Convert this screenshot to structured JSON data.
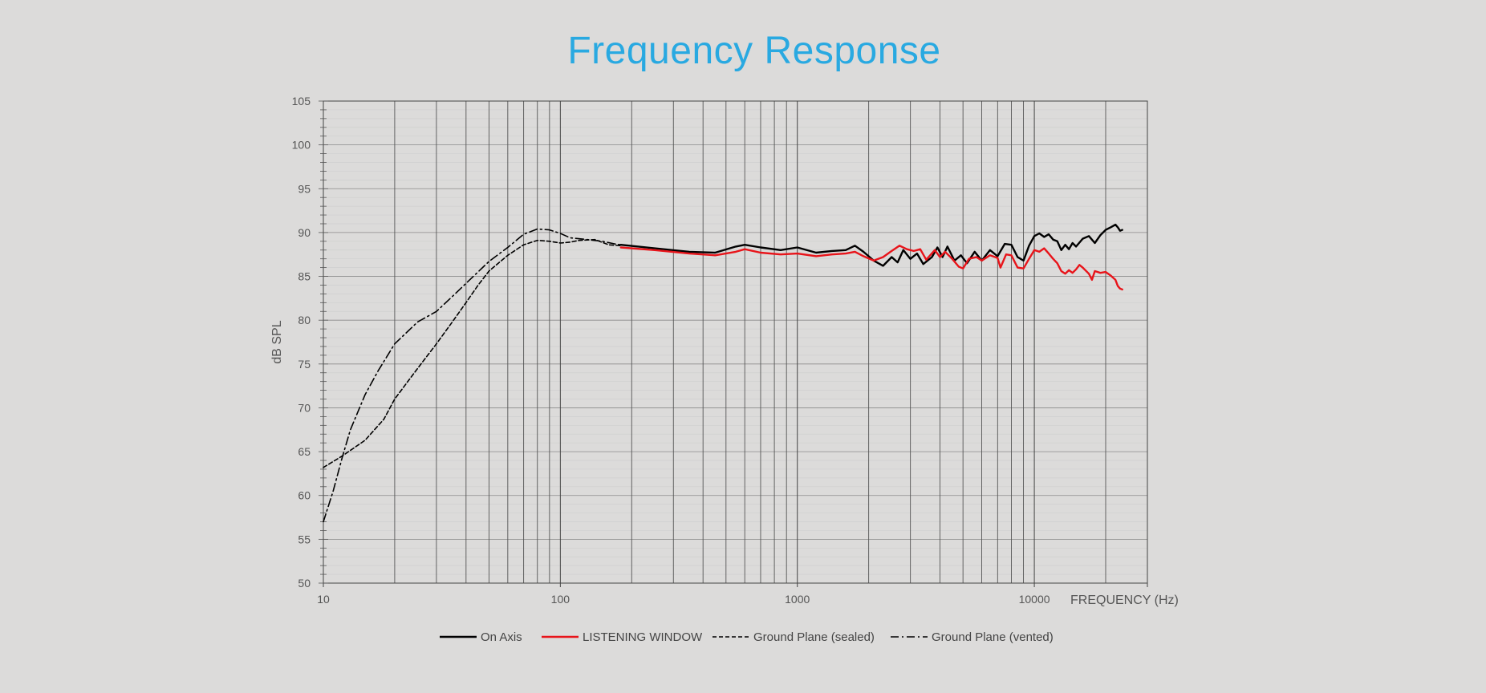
{
  "chart_data": {
    "type": "line",
    "title": "Frequency Response",
    "xlabel": "FREQUENCY (Hz)",
    "ylabel": "dB SPL",
    "x_scale": "log",
    "xlim": [
      10,
      30000
    ],
    "ylim": [
      50,
      105
    ],
    "x_ticks": [
      10,
      100,
      1000,
      10000
    ],
    "x_tick_labels": [
      "10",
      "100",
      "1000",
      "10000"
    ],
    "y_ticks": [
      50,
      55,
      60,
      65,
      70,
      75,
      80,
      85,
      90,
      95,
      100,
      105
    ],
    "y_tick_labels": [
      "50",
      "55",
      "60",
      "65",
      "70",
      "75",
      "80",
      "85",
      "90",
      "95",
      "100",
      "105"
    ],
    "grid": true,
    "legend_position": "bottom",
    "series": [
      {
        "name": "On Axis",
        "color": "#000000",
        "style": "solid",
        "points": [
          [
            180,
            88.6
          ],
          [
            250,
            88.2
          ],
          [
            350,
            87.8
          ],
          [
            450,
            87.7
          ],
          [
            550,
            88.4
          ],
          [
            600,
            88.6
          ],
          [
            700,
            88.3
          ],
          [
            850,
            88.0
          ],
          [
            1000,
            88.3
          ],
          [
            1200,
            87.7
          ],
          [
            1400,
            87.9
          ],
          [
            1600,
            88.0
          ],
          [
            1750,
            88.5
          ],
          [
            1900,
            87.8
          ],
          [
            2100,
            86.8
          ],
          [
            2300,
            86.2
          ],
          [
            2500,
            87.2
          ],
          [
            2650,
            86.6
          ],
          [
            2800,
            88.0
          ],
          [
            3000,
            87.0
          ],
          [
            3200,
            87.6
          ],
          [
            3400,
            86.4
          ],
          [
            3700,
            87.2
          ],
          [
            3900,
            88.3
          ],
          [
            4100,
            87.2
          ],
          [
            4300,
            88.4
          ],
          [
            4600,
            86.8
          ],
          [
            4900,
            87.4
          ],
          [
            5200,
            86.5
          ],
          [
            5600,
            87.8
          ],
          [
            6000,
            86.8
          ],
          [
            6500,
            88.0
          ],
          [
            7000,
            87.3
          ],
          [
            7500,
            88.7
          ],
          [
            8000,
            88.6
          ],
          [
            8500,
            87.2
          ],
          [
            9000,
            86.8
          ],
          [
            9500,
            88.5
          ],
          [
            10000,
            89.6
          ],
          [
            10500,
            89.9
          ],
          [
            11000,
            89.5
          ],
          [
            11500,
            89.8
          ],
          [
            12000,
            89.2
          ],
          [
            12500,
            89.0
          ],
          [
            13000,
            88.0
          ],
          [
            13500,
            88.6
          ],
          [
            14000,
            88.1
          ],
          [
            14500,
            88.8
          ],
          [
            15000,
            88.4
          ],
          [
            16000,
            89.3
          ],
          [
            17000,
            89.6
          ],
          [
            18000,
            88.8
          ],
          [
            19000,
            89.7
          ],
          [
            20000,
            90.3
          ],
          [
            21000,
            90.6
          ],
          [
            22000,
            90.9
          ],
          [
            22500,
            90.6
          ],
          [
            23000,
            90.2
          ],
          [
            23500,
            90.3
          ]
        ]
      },
      {
        "name": "LISTENING WINDOW",
        "color": "#e8141a",
        "style": "solid",
        "points": [
          [
            180,
            88.3
          ],
          [
            250,
            88.0
          ],
          [
            350,
            87.6
          ],
          [
            450,
            87.4
          ],
          [
            550,
            87.8
          ],
          [
            600,
            88.1
          ],
          [
            700,
            87.7
          ],
          [
            850,
            87.5
          ],
          [
            1000,
            87.6
          ],
          [
            1200,
            87.3
          ],
          [
            1400,
            87.5
          ],
          [
            1600,
            87.6
          ],
          [
            1750,
            87.8
          ],
          [
            1900,
            87.3
          ],
          [
            2100,
            86.8
          ],
          [
            2300,
            87.2
          ],
          [
            2500,
            87.9
          ],
          [
            2700,
            88.5
          ],
          [
            2900,
            88.1
          ],
          [
            3100,
            87.9
          ],
          [
            3300,
            88.1
          ],
          [
            3500,
            86.9
          ],
          [
            3800,
            88.0
          ],
          [
            4000,
            87.2
          ],
          [
            4200,
            87.8
          ],
          [
            4500,
            87.0
          ],
          [
            4800,
            86.1
          ],
          [
            5000,
            85.9
          ],
          [
            5300,
            87.0
          ],
          [
            5700,
            87.2
          ],
          [
            6000,
            86.8
          ],
          [
            6500,
            87.4
          ],
          [
            7000,
            87.1
          ],
          [
            7200,
            86.0
          ],
          [
            7600,
            87.5
          ],
          [
            8000,
            87.4
          ],
          [
            8500,
            86.0
          ],
          [
            9000,
            85.9
          ],
          [
            9500,
            87.0
          ],
          [
            10000,
            88.0
          ],
          [
            10500,
            87.8
          ],
          [
            11000,
            88.2
          ],
          [
            11500,
            87.6
          ],
          [
            12000,
            87.0
          ],
          [
            12500,
            86.5
          ],
          [
            13000,
            85.6
          ],
          [
            13500,
            85.3
          ],
          [
            14000,
            85.7
          ],
          [
            14500,
            85.4
          ],
          [
            15000,
            85.8
          ],
          [
            15500,
            86.3
          ],
          [
            16000,
            86.0
          ],
          [
            17000,
            85.3
          ],
          [
            17500,
            84.6
          ],
          [
            18000,
            85.6
          ],
          [
            19000,
            85.4
          ],
          [
            20000,
            85.5
          ],
          [
            21000,
            85.1
          ],
          [
            22000,
            84.6
          ],
          [
            22500,
            83.9
          ],
          [
            23000,
            83.6
          ],
          [
            23500,
            83.5
          ]
        ]
      },
      {
        "name": "Ground Plane (sealed)",
        "color": "#000000",
        "style": "dashed",
        "points": [
          [
            10,
            63.2
          ],
          [
            12,
            64.5
          ],
          [
            15,
            66.3
          ],
          [
            18,
            68.7
          ],
          [
            20,
            71.0
          ],
          [
            25,
            74.5
          ],
          [
            30,
            77.3
          ],
          [
            35,
            79.8
          ],
          [
            40,
            82.0
          ],
          [
            45,
            84.0
          ],
          [
            50,
            85.6
          ],
          [
            60,
            87.4
          ],
          [
            70,
            88.6
          ],
          [
            80,
            89.1
          ],
          [
            90,
            89.0
          ],
          [
            100,
            88.8
          ],
          [
            110,
            88.9
          ],
          [
            120,
            89.1
          ],
          [
            140,
            89.2
          ],
          [
            160,
            88.6
          ],
          [
            180,
            88.5
          ]
        ]
      },
      {
        "name": "Ground Plane (vented)",
        "color": "#000000",
        "style": "dashdot",
        "points": [
          [
            10,
            57.0
          ],
          [
            11,
            60.5
          ],
          [
            12,
            64.3
          ],
          [
            13,
            67.5
          ],
          [
            15,
            71.5
          ],
          [
            17,
            74.2
          ],
          [
            20,
            77.3
          ],
          [
            25,
            79.8
          ],
          [
            30,
            81.0
          ],
          [
            35,
            82.7
          ],
          [
            40,
            84.2
          ],
          [
            50,
            86.7
          ],
          [
            60,
            88.3
          ],
          [
            70,
            89.8
          ],
          [
            80,
            90.4
          ],
          [
            90,
            90.3
          ],
          [
            100,
            89.9
          ],
          [
            110,
            89.4
          ],
          [
            130,
            89.2
          ],
          [
            150,
            89.0
          ],
          [
            170,
            88.7
          ],
          [
            180,
            88.6
          ]
        ]
      }
    ]
  }
}
